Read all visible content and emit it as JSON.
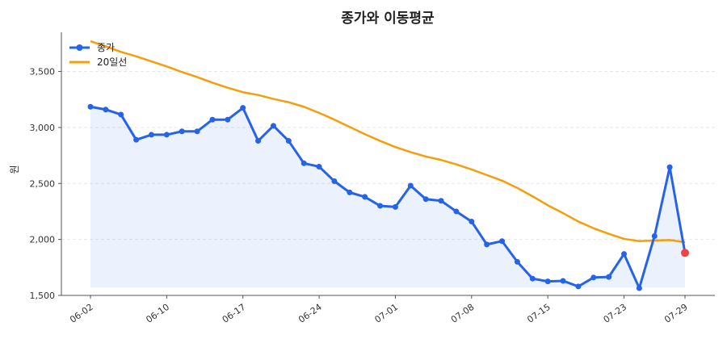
{
  "chart_data": {
    "type": "line",
    "title": "종가와 이동평균",
    "ylabel": "원",
    "xlabel": "",
    "ylim": [
      1500,
      3850
    ],
    "yticks": [
      1500,
      2000,
      2500,
      3000,
      3500
    ],
    "ytick_labels": [
      "1,500",
      "2,000",
      "2,500",
      "3,000",
      "3,500"
    ],
    "xtick_labels": [
      "06-02",
      "06-10",
      "06-17",
      "06-24",
      "07-01",
      "07-08",
      "07-15",
      "07-23",
      "07-29"
    ],
    "xtick_index": [
      0,
      5,
      10,
      15,
      20,
      25,
      30,
      35,
      39
    ],
    "grid": true,
    "legend_position": "top-left",
    "series": [
      {
        "name": "종가",
        "color": "#2563eb",
        "marker": "circle",
        "fill": true,
        "values": [
          3185,
          3160,
          3115,
          2890,
          2935,
          2935,
          2965,
          2965,
          3070,
          3070,
          3175,
          2880,
          3015,
          2880,
          2680,
          2650,
          2520,
          2420,
          2380,
          2300,
          2290,
          2480,
          2360,
          2345,
          2250,
          2160,
          1955,
          1985,
          1800,
          1650,
          1625,
          1630,
          1580,
          1660,
          1665,
          1870,
          1565,
          2030,
          2645,
          1880
        ]
      },
      {
        "name": "20일선",
        "color": "#f59e0b",
        "values": [
          3770,
          3725,
          3675,
          3635,
          3590,
          3545,
          3495,
          3450,
          3400,
          3355,
          3315,
          3290,
          3255,
          3225,
          3185,
          3130,
          3070,
          3005,
          2940,
          2880,
          2825,
          2780,
          2740,
          2710,
          2670,
          2625,
          2575,
          2525,
          2460,
          2385,
          2305,
          2235,
          2160,
          2100,
          2050,
          2005,
          1985,
          1990,
          1995,
          1975
        ]
      }
    ],
    "last_point_color": "#ef4444"
  }
}
